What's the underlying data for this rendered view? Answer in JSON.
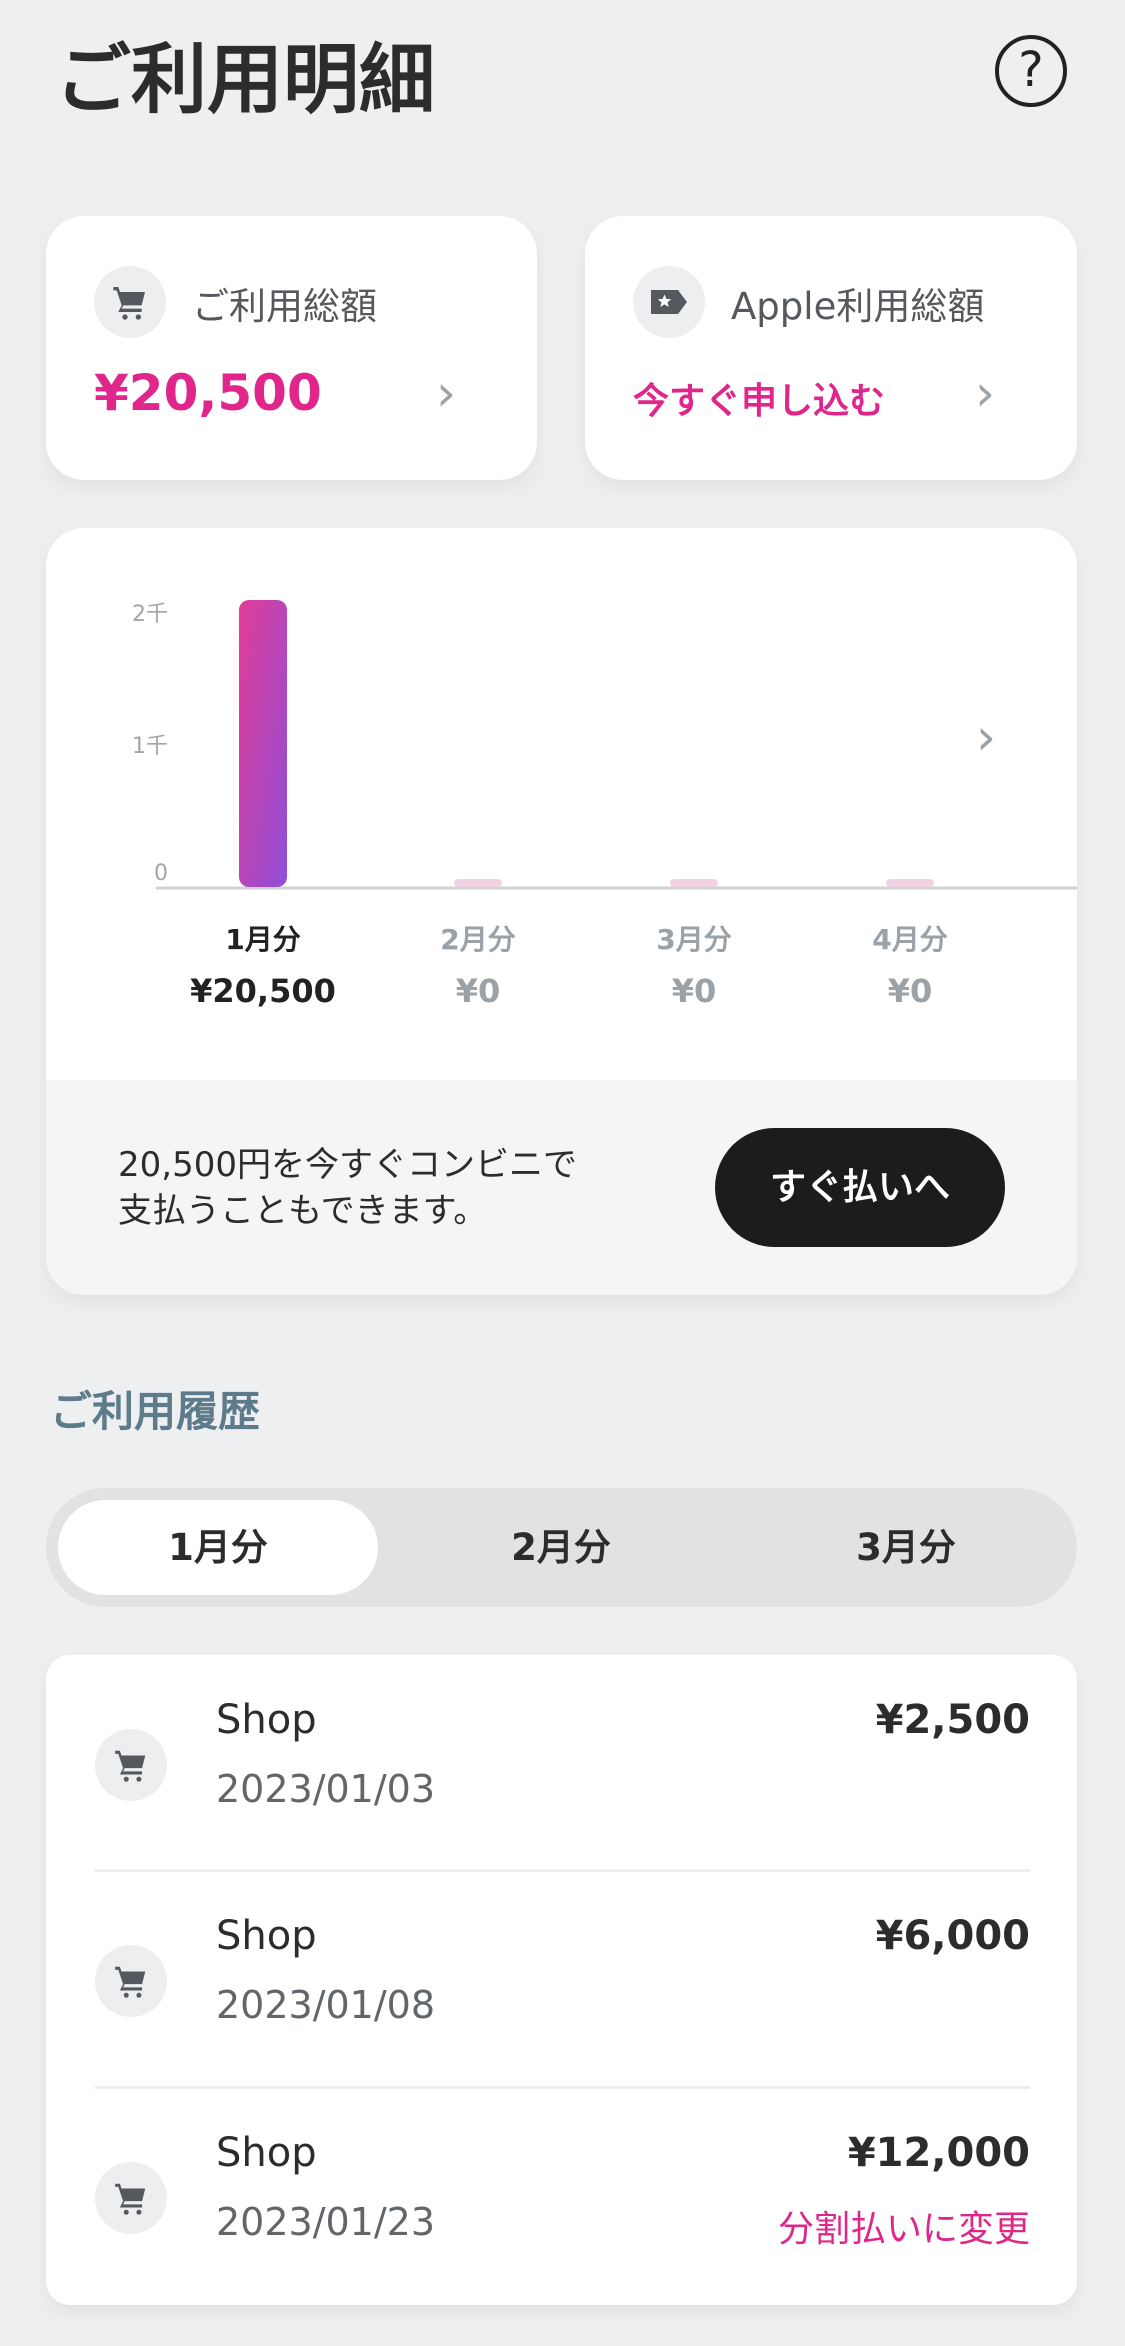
{
  "header": {
    "title": "ご利用明細",
    "help_icon": "question-circle-icon"
  },
  "summary": {
    "usage": {
      "label": "ご利用総額",
      "value": "¥20,500",
      "icon": "cart-icon"
    },
    "apple": {
      "label": "Apple利用総額",
      "action": "今すぐ申し込む",
      "icon": "tag-star-icon"
    }
  },
  "colors": {
    "accent": "#e0268a",
    "bar_gradient": [
      "#e23c96",
      "#8f4fd9"
    ],
    "empty_bar": "#f2d2e2"
  },
  "chart_data": {
    "type": "bar",
    "categories": [
      "1月分",
      "2月分",
      "3月分",
      "4月分"
    ],
    "values": [
      20500,
      0,
      0,
      0
    ],
    "value_labels": [
      "¥20,500",
      "¥0",
      "¥0",
      "¥0"
    ],
    "yticks": [
      "0",
      "1千",
      "2千"
    ],
    "selected": "1月分",
    "grid": false
  },
  "pay": {
    "text_line1": "20,500円を今すぐコンビニで",
    "text_line2": "支払うこともできます。",
    "button": "すぐ払いへ"
  },
  "history": {
    "title": "ご利用履歴",
    "tabs": [
      "1月分",
      "2月分",
      "3月分"
    ],
    "active_tab": "1月分",
    "items": [
      {
        "name": "Shop",
        "date": "2023/01/03",
        "amount": "¥2,500",
        "link": ""
      },
      {
        "name": "Shop",
        "date": "2023/01/08",
        "amount": "¥6,000",
        "link": ""
      },
      {
        "name": "Shop",
        "date": "2023/01/23",
        "amount": "¥12,000",
        "link": "分割払いに変更"
      }
    ]
  }
}
